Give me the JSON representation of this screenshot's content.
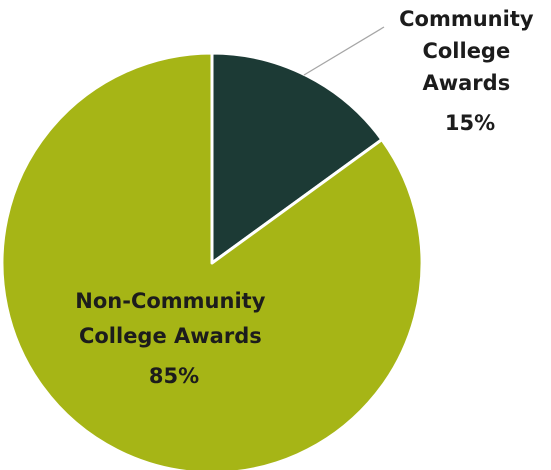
{
  "chart_data": {
    "type": "pie",
    "title": "",
    "start_angle_deg": 90,
    "direction": "clockwise",
    "slices": [
      {
        "name": "Community College Awards",
        "label_lines": [
          "Community",
          "College",
          "Awards",
          "15%"
        ],
        "value": 15,
        "color": "#1c3a35"
      },
      {
        "name": "Non-Community College Awards",
        "label_lines": [
          "Non-Community",
          "College Awards",
          "85%"
        ],
        "value": 85,
        "color": "#a6b516"
      }
    ],
    "slice_border_color": "#ffffff",
    "leader_line_color": "#a6a6a6",
    "legend": "none"
  }
}
